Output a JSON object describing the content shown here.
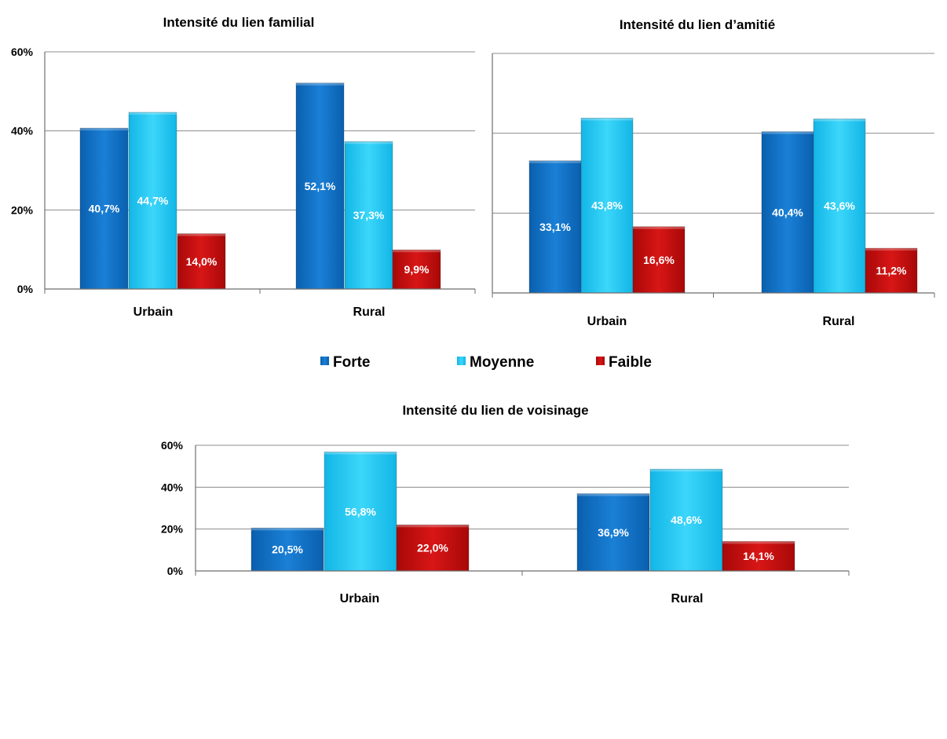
{
  "chart_data": [
    {
      "type": "bar",
      "title": "Intensité du lien familial",
      "categories": [
        "Urbain",
        "Rural"
      ],
      "series": [
        {
          "name": "Forte",
          "values": [
            40.7,
            52.1
          ],
          "labels": [
            "40,7%",
            "52,1%"
          ]
        },
        {
          "name": "Moyenne",
          "values": [
            44.7,
            37.3
          ],
          "labels": [
            "44,7%",
            "37,3%"
          ]
        },
        {
          "name": "Faible",
          "values": [
            14.0,
            9.9
          ],
          "labels": [
            "14,0%",
            "9,9%"
          ]
        }
      ],
      "yticks": [
        "0%",
        "20%",
        "40%",
        "60%"
      ],
      "ylim": [
        0,
        60
      ],
      "grid": true
    },
    {
      "type": "bar",
      "title": "Intensité du lien d’amitié",
      "categories": [
        "Urbain",
        "Rural"
      ],
      "series": [
        {
          "name": "Forte",
          "values": [
            33.1,
            40.4
          ],
          "labels": [
            "33,1%",
            "40,4%"
          ]
        },
        {
          "name": "Moyenne",
          "values": [
            43.8,
            43.6
          ],
          "labels": [
            "43,8%",
            "43,6%"
          ]
        },
        {
          "name": "Faible",
          "values": [
            16.6,
            11.2
          ],
          "labels": [
            "16,6%",
            "11,2%"
          ]
        }
      ],
      "yticks": [],
      "ylim": [
        0,
        60
      ],
      "grid": true
    },
    {
      "type": "bar",
      "title": "Intensité du lien de voisinage",
      "categories": [
        "Urbain",
        "Rural"
      ],
      "series": [
        {
          "name": "Forte",
          "values": [
            20.5,
            36.9
          ],
          "labels": [
            "20,5%",
            "36,9%"
          ]
        },
        {
          "name": "Moyenne",
          "values": [
            56.8,
            48.6
          ],
          "labels": [
            "56,8%",
            "48,6%"
          ]
        },
        {
          "name": "Faible",
          "values": [
            22.0,
            14.1
          ],
          "labels": [
            "22,0%",
            "14,1%"
          ]
        }
      ],
      "yticks": [
        "0%",
        "20%",
        "40%",
        "60%"
      ],
      "ylim": [
        0,
        60
      ],
      "grid": true
    }
  ],
  "legend": {
    "placement": "center",
    "items": [
      {
        "name": "Forte",
        "color": "#0b6fc4"
      },
      {
        "name": "Moyenne",
        "color": "#1ec8f2"
      },
      {
        "name": "Faible",
        "color": "#c40c0c"
      }
    ]
  },
  "colors": {
    "Forte": "#0b6fc4",
    "Moyenne": "#1ec8f2",
    "Faible": "#c40c0c",
    "grid": "#8c8c8c"
  }
}
